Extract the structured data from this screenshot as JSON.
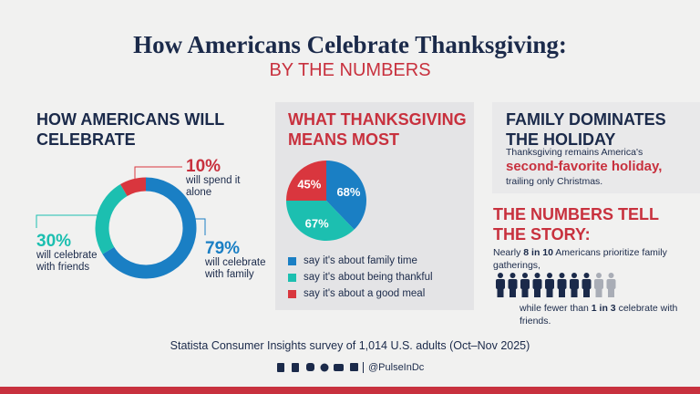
{
  "header": {
    "title": "How Americans Celebrate Thanksgiving:",
    "subtitle": "BY THE NUMBERS"
  },
  "chart_data": [
    {
      "type": "donut",
      "title": "HOW AMERICANS WILL CELEBRATE",
      "categories": [
        "will celebrate with family",
        "will celebrate with friends",
        "will spend it alone"
      ],
      "values": [
        79,
        30,
        10
      ],
      "value_labels": [
        "79%",
        "30%",
        "10%"
      ],
      "colors": [
        "#1a7fc4",
        "#1cbfb0",
        "#d9363e"
      ]
    },
    {
      "type": "pie",
      "title": "WHAT THANKSGIVING MEANS MOST",
      "categories": [
        "say it's about family time",
        "say it's about being thankful",
        "say it's about a good meal"
      ],
      "values": [
        68,
        67,
        45
      ],
      "value_labels": [
        "68%",
        "67%",
        "45%"
      ],
      "colors": [
        "#1a7fc4",
        "#1cbfb0",
        "#d9363e"
      ]
    }
  ],
  "family": {
    "title": "FAMILY DOMINATES THE HOLIDAY",
    "line1": "Thanksgiving remains America's",
    "highlight": "second-favorite holiday,",
    "line2": "trailing only Christmas."
  },
  "story": {
    "title": "THE NUMBERS TELL THE STORY:",
    "text1": [
      "Nearly ",
      "8 in 10",
      " Americans prioritize family gatherings,"
    ],
    "text2": [
      "while fewer than ",
      "1 in 3",
      " celebrate with friends."
    ]
  },
  "footer": {
    "source": "Statista Consumer Insights survey of 1,014 U.S. adults (Oct–Nov 2025)",
    "handle": "@PulseInDc"
  }
}
